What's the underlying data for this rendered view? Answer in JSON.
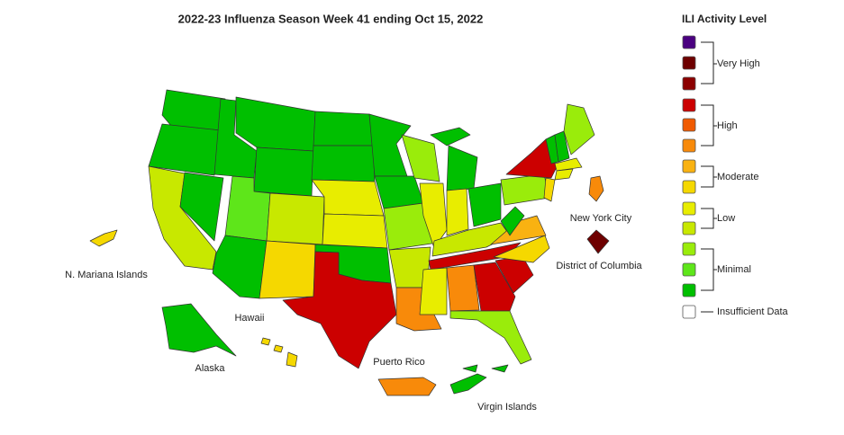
{
  "title": "2022-23 Influenza Season Week 41 ending Oct 15, 2022",
  "legend": {
    "title": "ILI Activity Level",
    "groups": [
      "Very High",
      "High",
      "Moderate",
      "Low",
      "Minimal",
      "Insufficient Data"
    ]
  },
  "map_labels": [
    "New York City",
    "District of Columbia",
    "N. Mariana Islands",
    "Hawaii",
    "Alaska",
    "Puerto Rico",
    "Virgin Islands"
  ]
}
